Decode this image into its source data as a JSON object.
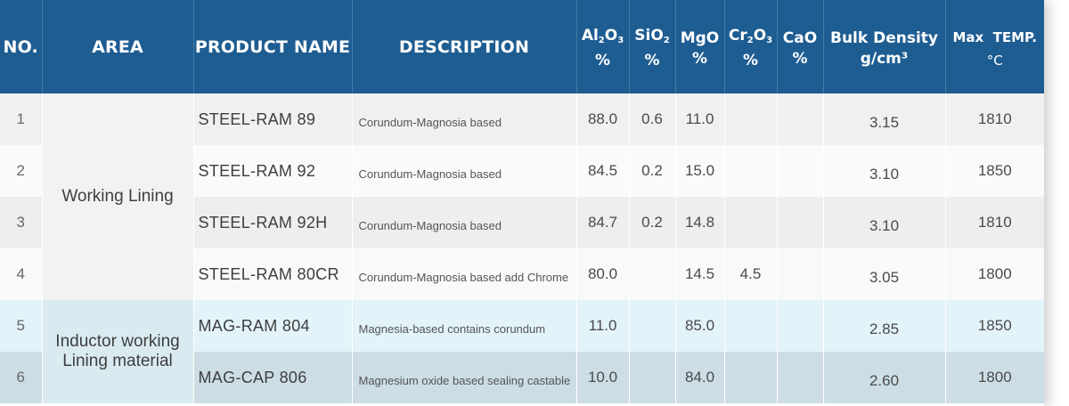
{
  "headers": {
    "no": "NO.",
    "area": "AREA",
    "product": "PRODUCT NAME",
    "description": "DESCRIPTION",
    "al2o3": "%",
    "sio2": "%",
    "mgo": "%",
    "cr2o3": "%",
    "cao": "%",
    "bulk_density": "Bulk Density",
    "bulk_density_unit": "g/cm³",
    "max_temp": "Max  TEMP.",
    "max_temp_unit": "°C"
  },
  "areas": {
    "working": "Working Lining",
    "inductor_line1": "Inductor working",
    "inductor_line2": "Lining material"
  },
  "rows": [
    {
      "no": "1",
      "product": "STEEL-RAM 89",
      "description": "Corundum-Magnosia based",
      "al2o3": "88.0",
      "sio2": "0.6",
      "mgo": "11.0",
      "cr2o3": "",
      "cao": "",
      "bulk_density": "3.15",
      "max_temp": "1810"
    },
    {
      "no": "2",
      "product": "STEEL-RAM 92",
      "description": "Corundum-Magnosia based",
      "al2o3": "84.5",
      "sio2": "0.2",
      "mgo": "15.0",
      "cr2o3": "",
      "cao": "",
      "bulk_density": "3.10",
      "max_temp": "1850"
    },
    {
      "no": "3",
      "product": "STEEL-RAM 92H",
      "description": "Corundum-Magnosia based",
      "al2o3": "84.7",
      "sio2": "0.2",
      "mgo": "14.8",
      "cr2o3": "",
      "cao": "",
      "bulk_density": "3.10",
      "max_temp": "1810"
    },
    {
      "no": "4",
      "product": "STEEL-RAM 80CR",
      "description": "Corundum-Magnosia based add Chrome",
      "al2o3": "80.0",
      "sio2": "",
      "mgo": "14.5",
      "cr2o3": "4.5",
      "cao": "",
      "bulk_density": "3.05",
      "max_temp": "1800"
    },
    {
      "no": "5",
      "product": "MAG-RAM 804",
      "description": "Magnesia-based contains corundum",
      "al2o3": "11.0",
      "sio2": "",
      "mgo": "85.0",
      "cr2o3": "",
      "cao": "",
      "bulk_density": "2.85",
      "max_temp": "1850"
    },
    {
      "no": "6",
      "product": "MAG-CAP 806",
      "description": "Magnesium oxide based sealing castable",
      "al2o3": "10.0",
      "sio2": "",
      "mgo": "84.0",
      "cr2o3": "",
      "cao": "",
      "bulk_density": "2.60",
      "max_temp": "1800"
    }
  ],
  "colors": {
    "header_bg": "#1e5d92",
    "header_text": "#ffffff",
    "inductor_row_tint": "#e2f3f9"
  }
}
